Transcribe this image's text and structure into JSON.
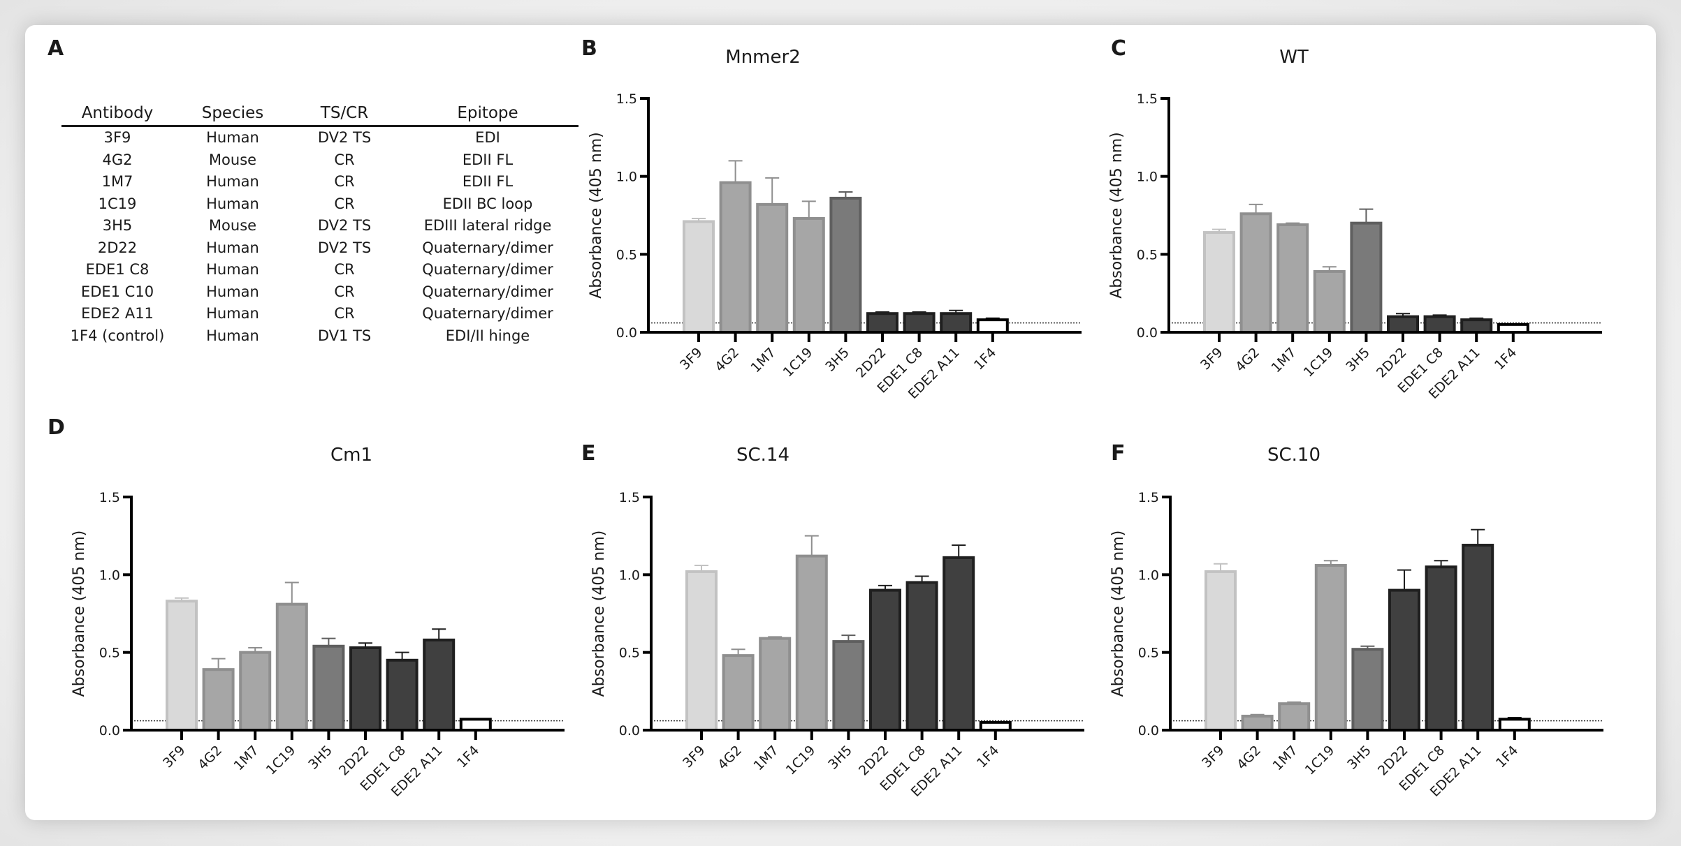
{
  "panel_letters": {
    "a": "A",
    "b": "B",
    "c": "C",
    "d": "D",
    "e": "E",
    "f": "F"
  },
  "table": {
    "headers": [
      "Antibody",
      "Species",
      "TS/CR",
      "Epitope"
    ],
    "rows": [
      [
        "3F9",
        "Human",
        "DV2 TS",
        "EDI"
      ],
      [
        "4G2",
        "Mouse",
        "CR",
        "EDII FL"
      ],
      [
        "1M7",
        "Human",
        "CR",
        "EDII FL"
      ],
      [
        "1C19",
        "Human",
        "CR",
        "EDII BC loop"
      ],
      [
        "3H5",
        "Mouse",
        "DV2 TS",
        "EDIII lateral ridge"
      ],
      [
        "2D22",
        "Human",
        "DV2 TS",
        "Quaternary/dimer"
      ],
      [
        "EDE1 C8",
        "Human",
        "CR",
        "Quaternary/dimer"
      ],
      [
        "EDE1 C10",
        "Human",
        "CR",
        "Quaternary/dimer"
      ],
      [
        "EDE2 A11",
        "Human",
        "CR",
        "Quaternary/dimer"
      ],
      [
        "1F4 (control)",
        "Human",
        "DV1 TS",
        "EDI/II hinge"
      ]
    ]
  },
  "colors": {
    "3F9": {
      "fill": "#d9d9d9",
      "stroke": "#c2c2c2"
    },
    "mid": {
      "fill": "#a6a6a6",
      "stroke": "#8f8f8f"
    },
    "3H5": {
      "fill": "#7a7a7a",
      "stroke": "#5f5f5f"
    },
    "dark": {
      "fill": "#404040",
      "stroke": "#1f1f1f"
    },
    "control": {
      "fill": "#ffffff",
      "stroke": "#000000"
    }
  },
  "chart_data": [
    {
      "panel": "B",
      "type": "bar",
      "title": "Mnmer2",
      "categories": [
        "3F9",
        "4G2",
        "1M7",
        "1C19",
        "3H5",
        "2D22",
        "EDE1 C8",
        "EDE2 A11",
        "1F4"
      ],
      "values": [
        0.71,
        0.96,
        0.82,
        0.73,
        0.86,
        0.12,
        0.12,
        0.12,
        0.08
      ],
      "error_upper": [
        0.73,
        1.1,
        0.99,
        0.84,
        0.9,
        0.13,
        0.13,
        0.14,
        0.09
      ],
      "ylabel": "Absorbance (405 nm)",
      "ylim": [
        0,
        1.5
      ],
      "yticks": [
        "0.0",
        "0.5",
        "1.0",
        "1.5"
      ],
      "threshold": 0.06
    },
    {
      "panel": "C",
      "type": "bar",
      "title": "WT",
      "categories": [
        "3F9",
        "4G2",
        "1M7",
        "1C19",
        "3H5",
        "2D22",
        "EDE1 C8",
        "EDE2 A11",
        "1F4"
      ],
      "values": [
        0.64,
        0.76,
        0.69,
        0.39,
        0.7,
        0.1,
        0.1,
        0.08,
        0.05
      ],
      "error_upper": [
        0.66,
        0.82,
        0.7,
        0.42,
        0.79,
        0.12,
        0.11,
        0.09,
        0.05
      ],
      "ylabel": "Absorbance (405 nm)",
      "ylim": [
        0,
        1.5
      ],
      "yticks": [
        "0.0",
        "0.5",
        "1.0",
        "1.5"
      ],
      "threshold": 0.06
    },
    {
      "panel": "D",
      "type": "bar",
      "title": "Cm1",
      "categories": [
        "3F9",
        "4G2",
        "1M7",
        "1C19",
        "3H5",
        "2D22",
        "EDE1 C8",
        "EDE2 A11",
        "1F4"
      ],
      "values": [
        0.83,
        0.39,
        0.5,
        0.81,
        0.54,
        0.53,
        0.45,
        0.58,
        0.07
      ],
      "error_upper": [
        0.85,
        0.46,
        0.53,
        0.95,
        0.59,
        0.56,
        0.5,
        0.65,
        0.07
      ],
      "ylabel": "Absorbance (405 nm)",
      "ylim": [
        0,
        1.5
      ],
      "yticks": [
        "0.0",
        "0.5",
        "1.0",
        "1.5"
      ],
      "threshold": 0.06
    },
    {
      "panel": "E",
      "type": "bar",
      "title": "SC.14",
      "categories": [
        "3F9",
        "4G2",
        "1M7",
        "1C19",
        "3H5",
        "2D22",
        "EDE1 C8",
        "EDE2 A11",
        "1F4"
      ],
      "values": [
        1.02,
        0.48,
        0.59,
        1.12,
        0.57,
        0.9,
        0.95,
        1.11,
        0.05
      ],
      "error_upper": [
        1.06,
        0.52,
        0.6,
        1.25,
        0.61,
        0.93,
        0.99,
        1.19,
        0.05
      ],
      "ylabel": "Absorbance (405 nm)",
      "ylim": [
        0,
        1.5
      ],
      "yticks": [
        "0.0",
        "0.5",
        "1.0",
        "1.5"
      ],
      "threshold": 0.06
    },
    {
      "panel": "F",
      "type": "bar",
      "title": "SC.10",
      "categories": [
        "3F9",
        "4G2",
        "1M7",
        "1C19",
        "3H5",
        "2D22",
        "EDE1 C8",
        "EDE2 A11",
        "1F4"
      ],
      "values": [
        1.02,
        0.09,
        0.17,
        1.06,
        0.52,
        0.9,
        1.05,
        1.19,
        0.07
      ],
      "error_upper": [
        1.07,
        0.1,
        0.18,
        1.09,
        0.54,
        1.03,
        1.09,
        1.29,
        0.08
      ],
      "ylabel": "Absorbance (405 nm)",
      "ylim": [
        0,
        1.5
      ],
      "yticks": [
        "0.0",
        "0.5",
        "1.0",
        "1.5"
      ],
      "threshold": 0.06
    }
  ]
}
